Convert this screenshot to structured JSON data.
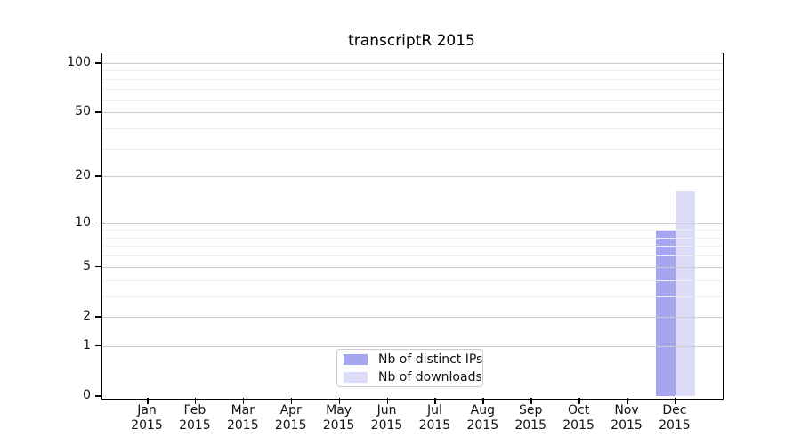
{
  "title": "transcriptR 2015",
  "chart_data": {
    "type": "bar",
    "title": "transcriptR 2015",
    "categories": [
      "Jan",
      "Feb",
      "Mar",
      "Apr",
      "May",
      "Jun",
      "Jul",
      "Aug",
      "Sep",
      "Oct",
      "Nov",
      "Dec"
    ],
    "year_label": "2015",
    "series": [
      {
        "name": "Nb of distinct IPs",
        "color": "#a5a5f0",
        "values": [
          0,
          0,
          0,
          0,
          0,
          0,
          0,
          0,
          0,
          0,
          0,
          9
        ]
      },
      {
        "name": "Nb of downloads",
        "color": "#dcdcf8",
        "values": [
          0,
          0,
          0,
          0,
          0,
          0,
          0,
          0,
          0,
          0,
          0,
          16
        ]
      }
    ],
    "yscale": "log1p",
    "ylim": [
      0,
      100
    ],
    "yticks": [
      0,
      1,
      2,
      5,
      10,
      20,
      50,
      100
    ],
    "minor_yticks": [
      3,
      4,
      6,
      7,
      8,
      9,
      30,
      40,
      60,
      70,
      80,
      90
    ],
    "grid": true,
    "legend_position": "bottom-center",
    "xlabel": "",
    "ylabel": ""
  },
  "colors": {
    "background": "#ffffff",
    "frame": "#000000",
    "major_grid": "#cccccc",
    "minor_grid": "#ededed",
    "text": "#111111",
    "legend_border": "#cccccc"
  }
}
